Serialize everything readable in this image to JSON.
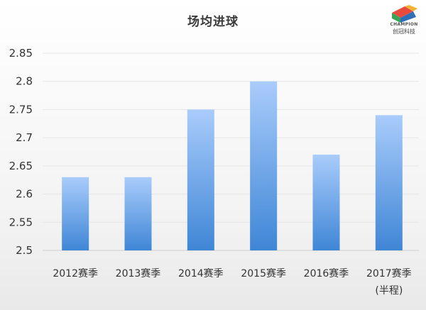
{
  "logo": {
    "wordmark": "CHAMPION",
    "subtitle": "创冠科技",
    "colors": [
      "#e84b3c",
      "#3aa35a",
      "#2e6fb8",
      "#f2b233"
    ]
  },
  "colors": {
    "bar_top": "#a9ccfb",
    "bar_bottom": "#3f86d6",
    "grid": "#e6e6e6",
    "axis": "#cfcfcf"
  },
  "chart_data": {
    "type": "bar",
    "title": "场均进球",
    "xlabel": "",
    "ylabel": "",
    "categories": [
      [
        "2012赛季"
      ],
      [
        "2013赛季"
      ],
      [
        "2014赛季"
      ],
      [
        "2015赛季"
      ],
      [
        "2016赛季"
      ],
      [
        "2017赛季",
        "(半程)"
      ]
    ],
    "values": [
      2.63,
      2.63,
      2.75,
      2.8,
      2.67,
      2.74
    ],
    "ylim": [
      2.5,
      2.85
    ],
    "yticks": [
      "2.5",
      "2.55",
      "2.6",
      "2.65",
      "2.7",
      "2.75",
      "2.8",
      "2.85"
    ],
    "grid": true,
    "legend": "none"
  }
}
